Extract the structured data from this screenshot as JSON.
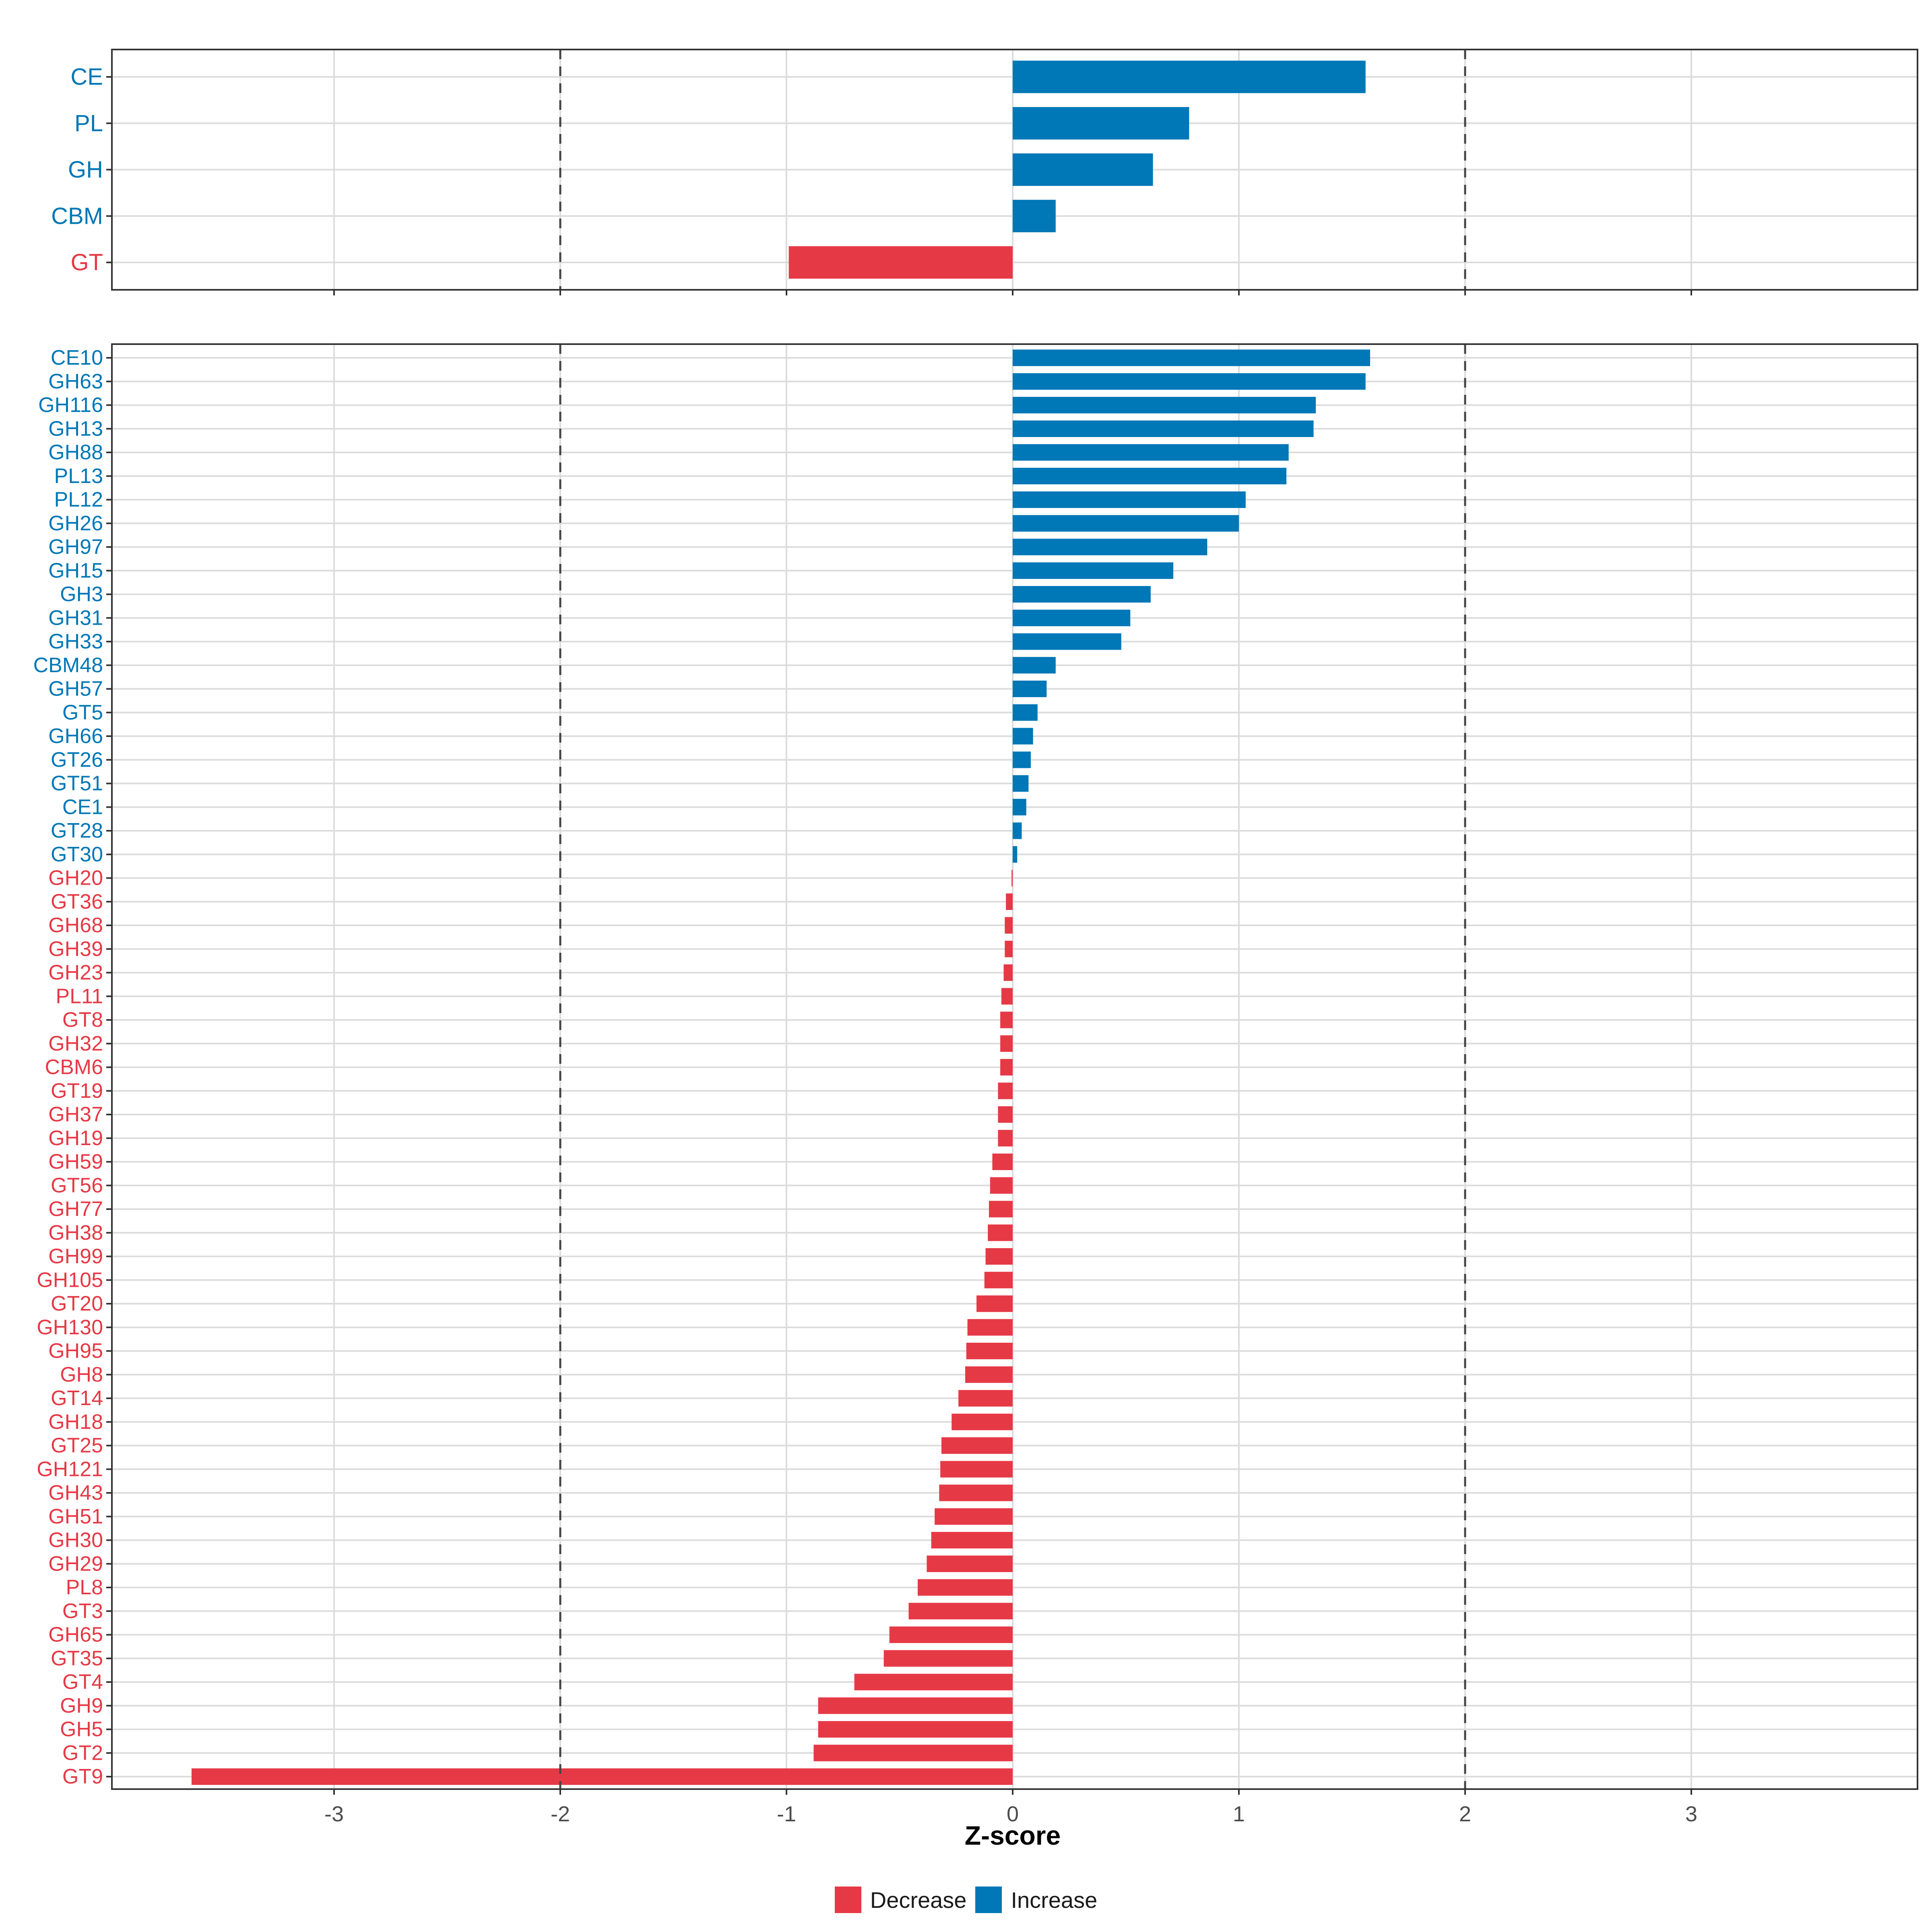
{
  "colors": {
    "decrease": "#E63946",
    "increase": "#0077B6"
  },
  "legend": {
    "decrease_label": "Decrease",
    "increase_label": "Increase"
  },
  "chart_data": [
    {
      "type": "bar",
      "orientation": "horizontal",
      "xlabel": "",
      "xlim": [
        -4,
        4
      ],
      "x_ticks": [
        -3,
        -2,
        -1,
        0,
        1,
        2,
        3
      ],
      "reference_lines": [
        -2,
        2
      ],
      "grid": true,
      "categories": [
        "CE",
        "PL",
        "GH",
        "CBM",
        "GT"
      ],
      "values": [
        1.56,
        0.78,
        0.62,
        0.19,
        -0.99
      ]
    },
    {
      "type": "bar",
      "orientation": "horizontal",
      "xlabel": "Z-score",
      "xlim": [
        -4,
        4
      ],
      "x_ticks": [
        -3,
        -2,
        -1,
        0,
        1,
        2,
        3
      ],
      "x_tick_labels": [
        "-3",
        "-2",
        "-1",
        "0",
        "1",
        "2",
        "3"
      ],
      "reference_lines": [
        -2,
        2
      ],
      "grid": true,
      "categories": [
        "CE10",
        "GH63",
        "GH116",
        "GH13",
        "GH88",
        "PL13",
        "PL12",
        "GH26",
        "GH97",
        "GH15",
        "GH3",
        "GH31",
        "GH33",
        "CBM48",
        "GH57",
        "GT5",
        "GH66",
        "GT26",
        "GT51",
        "CE1",
        "GT28",
        "GT30",
        "GH20",
        "GT36",
        "GH68",
        "GH39",
        "GH23",
        "PL11",
        "GT8",
        "GH32",
        "CBM6",
        "GT19",
        "GH37",
        "GH19",
        "GH59",
        "GT56",
        "GH77",
        "GH38",
        "GH99",
        "GH105",
        "GT20",
        "GH130",
        "GH95",
        "GH8",
        "GT14",
        "GH18",
        "GT25",
        "GH121",
        "GH43",
        "GH51",
        "GH30",
        "GH29",
        "PL8",
        "GT3",
        "GH65",
        "GT35",
        "GT4",
        "GH9",
        "GH5",
        "GT2",
        "GT9"
      ],
      "values": [
        1.58,
        1.56,
        1.34,
        1.33,
        1.22,
        1.21,
        1.03,
        1.0,
        0.86,
        0.71,
        0.61,
        0.52,
        0.48,
        0.19,
        0.15,
        0.11,
        0.09,
        0.08,
        0.07,
        0.06,
        0.04,
        0.02,
        -0.005,
        -0.03,
        -0.035,
        -0.035,
        -0.04,
        -0.05,
        -0.055,
        -0.055,
        -0.055,
        -0.065,
        -0.065,
        -0.065,
        -0.09,
        -0.1,
        -0.105,
        -0.11,
        -0.12,
        -0.125,
        -0.16,
        -0.2,
        -0.205,
        -0.21,
        -0.24,
        -0.27,
        -0.315,
        -0.32,
        -0.325,
        -0.345,
        -0.36,
        -0.38,
        -0.42,
        -0.46,
        -0.545,
        -0.57,
        -0.7,
        -0.86,
        -0.86,
        -0.88,
        -3.63
      ]
    }
  ]
}
